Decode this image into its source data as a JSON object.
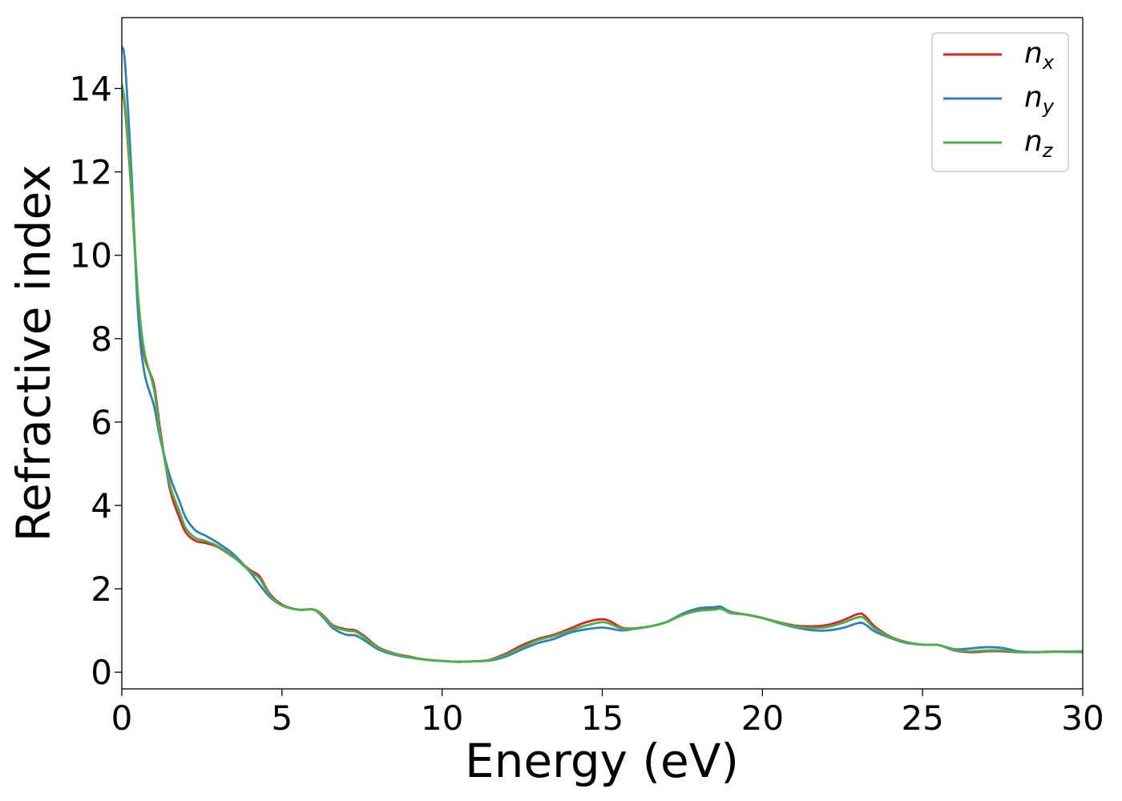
{
  "chart_data": {
    "type": "line",
    "title": "",
    "xlabel": "Energy (eV)",
    "ylabel": "Refractive index",
    "xlim": [
      0,
      30
    ],
    "ylim": [
      -0.4,
      15.7
    ],
    "xticks": [
      0,
      5,
      10,
      15,
      20,
      25,
      30
    ],
    "yticks": [
      0,
      2,
      4,
      6,
      8,
      10,
      12,
      14
    ],
    "grid": false,
    "legend_position": "top-right",
    "series": [
      {
        "name": "n_x",
        "name_main": "n",
        "name_sub": "x",
        "color": "#d62728",
        "points": [
          [
            0,
            14.0
          ],
          [
            0.1,
            13.5
          ],
          [
            0.3,
            11.5
          ],
          [
            0.5,
            9.0
          ],
          [
            0.7,
            7.6
          ],
          [
            1.0,
            6.9
          ],
          [
            1.2,
            5.8
          ],
          [
            1.5,
            4.4
          ],
          [
            1.8,
            3.7
          ],
          [
            2.0,
            3.35
          ],
          [
            2.3,
            3.15
          ],
          [
            2.6,
            3.1
          ],
          [
            3.0,
            3.0
          ],
          [
            3.5,
            2.75
          ],
          [
            4.0,
            2.45
          ],
          [
            4.3,
            2.3
          ],
          [
            4.6,
            1.9
          ],
          [
            5.0,
            1.62
          ],
          [
            5.5,
            1.5
          ],
          [
            6.0,
            1.5
          ],
          [
            6.3,
            1.35
          ],
          [
            6.6,
            1.12
          ],
          [
            7.0,
            1.03
          ],
          [
            7.3,
            1.0
          ],
          [
            7.6,
            0.85
          ],
          [
            8.0,
            0.6
          ],
          [
            8.5,
            0.45
          ],
          [
            9.0,
            0.37
          ],
          [
            9.5,
            0.3
          ],
          [
            10.0,
            0.27
          ],
          [
            10.5,
            0.25
          ],
          [
            11.0,
            0.26
          ],
          [
            11.5,
            0.3
          ],
          [
            12.0,
            0.45
          ],
          [
            12.5,
            0.65
          ],
          [
            13.0,
            0.8
          ],
          [
            13.5,
            0.9
          ],
          [
            14.0,
            1.05
          ],
          [
            14.5,
            1.2
          ],
          [
            15.0,
            1.27
          ],
          [
            15.3,
            1.2
          ],
          [
            15.6,
            1.07
          ],
          [
            16.0,
            1.05
          ],
          [
            16.5,
            1.1
          ],
          [
            17.0,
            1.2
          ],
          [
            17.5,
            1.38
          ],
          [
            18.0,
            1.48
          ],
          [
            18.5,
            1.52
          ],
          [
            18.7,
            1.54
          ],
          [
            19.0,
            1.42
          ],
          [
            19.5,
            1.38
          ],
          [
            20.0,
            1.3
          ],
          [
            20.5,
            1.2
          ],
          [
            21.0,
            1.12
          ],
          [
            21.5,
            1.1
          ],
          [
            22.0,
            1.13
          ],
          [
            22.5,
            1.24
          ],
          [
            23.0,
            1.4
          ],
          [
            23.2,
            1.35
          ],
          [
            23.5,
            1.1
          ],
          [
            24.0,
            0.85
          ],
          [
            24.5,
            0.72
          ],
          [
            25.0,
            0.66
          ],
          [
            25.5,
            0.65
          ],
          [
            26.0,
            0.52
          ],
          [
            26.5,
            0.48
          ],
          [
            27.0,
            0.5
          ],
          [
            27.5,
            0.5
          ],
          [
            28.0,
            0.48
          ],
          [
            28.5,
            0.48
          ],
          [
            29.0,
            0.49
          ],
          [
            29.5,
            0.49
          ],
          [
            30.0,
            0.49
          ]
        ]
      },
      {
        "name": "n_y",
        "name_main": "n",
        "name_sub": "y",
        "color": "#377eb8",
        "points": [
          [
            0,
            15.0
          ],
          [
            0.1,
            14.6
          ],
          [
            0.3,
            12.0
          ],
          [
            0.5,
            8.7
          ],
          [
            0.7,
            7.2
          ],
          [
            1.0,
            6.4
          ],
          [
            1.2,
            5.6
          ],
          [
            1.5,
            4.7
          ],
          [
            1.8,
            4.1
          ],
          [
            2.0,
            3.7
          ],
          [
            2.3,
            3.4
          ],
          [
            2.6,
            3.28
          ],
          [
            3.0,
            3.1
          ],
          [
            3.5,
            2.82
          ],
          [
            4.0,
            2.4
          ],
          [
            4.3,
            2.1
          ],
          [
            4.6,
            1.82
          ],
          [
            5.0,
            1.6
          ],
          [
            5.5,
            1.5
          ],
          [
            6.0,
            1.5
          ],
          [
            6.3,
            1.3
          ],
          [
            6.6,
            1.05
          ],
          [
            7.0,
            0.9
          ],
          [
            7.3,
            0.88
          ],
          [
            7.6,
            0.75
          ],
          [
            8.0,
            0.55
          ],
          [
            8.5,
            0.42
          ],
          [
            9.0,
            0.35
          ],
          [
            9.5,
            0.3
          ],
          [
            10.0,
            0.27
          ],
          [
            10.5,
            0.25
          ],
          [
            11.0,
            0.26
          ],
          [
            11.5,
            0.28
          ],
          [
            12.0,
            0.38
          ],
          [
            12.5,
            0.55
          ],
          [
            13.0,
            0.7
          ],
          [
            13.5,
            0.8
          ],
          [
            14.0,
            0.95
          ],
          [
            14.5,
            1.03
          ],
          [
            15.0,
            1.07
          ],
          [
            15.3,
            1.04
          ],
          [
            15.6,
            1.0
          ],
          [
            16.0,
            1.04
          ],
          [
            16.5,
            1.1
          ],
          [
            17.0,
            1.2
          ],
          [
            17.5,
            1.4
          ],
          [
            18.0,
            1.53
          ],
          [
            18.5,
            1.56
          ],
          [
            18.7,
            1.57
          ],
          [
            19.0,
            1.45
          ],
          [
            19.5,
            1.38
          ],
          [
            20.0,
            1.3
          ],
          [
            20.5,
            1.18
          ],
          [
            21.0,
            1.08
          ],
          [
            21.5,
            1.01
          ],
          [
            22.0,
            1.0
          ],
          [
            22.5,
            1.06
          ],
          [
            23.0,
            1.18
          ],
          [
            23.2,
            1.15
          ],
          [
            23.5,
            0.98
          ],
          [
            24.0,
            0.82
          ],
          [
            24.5,
            0.7
          ],
          [
            25.0,
            0.66
          ],
          [
            25.5,
            0.65
          ],
          [
            26.0,
            0.55
          ],
          [
            26.5,
            0.57
          ],
          [
            27.0,
            0.6
          ],
          [
            27.5,
            0.58
          ],
          [
            28.0,
            0.5
          ],
          [
            28.5,
            0.48
          ],
          [
            29.0,
            0.49
          ],
          [
            29.5,
            0.49
          ],
          [
            30.0,
            0.5
          ]
        ]
      },
      {
        "name": "n_z",
        "name_main": "n",
        "name_sub": "z",
        "color": "#4daf4a",
        "points": [
          [
            0,
            14.1
          ],
          [
            0.1,
            13.6
          ],
          [
            0.3,
            11.6
          ],
          [
            0.5,
            9.1
          ],
          [
            0.7,
            7.7
          ],
          [
            1.0,
            6.8
          ],
          [
            1.2,
            5.7
          ],
          [
            1.5,
            4.5
          ],
          [
            1.8,
            3.85
          ],
          [
            2.0,
            3.45
          ],
          [
            2.3,
            3.22
          ],
          [
            2.6,
            3.15
          ],
          [
            3.0,
            3.02
          ],
          [
            3.5,
            2.76
          ],
          [
            4.0,
            2.42
          ],
          [
            4.3,
            2.25
          ],
          [
            4.6,
            1.87
          ],
          [
            5.0,
            1.6
          ],
          [
            5.5,
            1.5
          ],
          [
            6.0,
            1.5
          ],
          [
            6.3,
            1.33
          ],
          [
            6.6,
            1.1
          ],
          [
            7.0,
            1.0
          ],
          [
            7.3,
            0.97
          ],
          [
            7.6,
            0.82
          ],
          [
            8.0,
            0.58
          ],
          [
            8.5,
            0.44
          ],
          [
            9.0,
            0.36
          ],
          [
            9.5,
            0.3
          ],
          [
            10.0,
            0.27
          ],
          [
            10.5,
            0.25
          ],
          [
            11.0,
            0.26
          ],
          [
            11.5,
            0.29
          ],
          [
            12.0,
            0.42
          ],
          [
            12.5,
            0.6
          ],
          [
            13.0,
            0.77
          ],
          [
            13.5,
            0.87
          ],
          [
            14.0,
            1.0
          ],
          [
            14.5,
            1.12
          ],
          [
            15.0,
            1.2
          ],
          [
            15.3,
            1.14
          ],
          [
            15.6,
            1.05
          ],
          [
            16.0,
            1.05
          ],
          [
            16.5,
            1.1
          ],
          [
            17.0,
            1.2
          ],
          [
            17.5,
            1.37
          ],
          [
            18.0,
            1.47
          ],
          [
            18.5,
            1.5
          ],
          [
            18.7,
            1.52
          ],
          [
            19.0,
            1.43
          ],
          [
            19.5,
            1.38
          ],
          [
            20.0,
            1.3
          ],
          [
            20.5,
            1.19
          ],
          [
            21.0,
            1.1
          ],
          [
            21.5,
            1.06
          ],
          [
            22.0,
            1.08
          ],
          [
            22.5,
            1.18
          ],
          [
            23.0,
            1.32
          ],
          [
            23.2,
            1.28
          ],
          [
            23.5,
            1.05
          ],
          [
            24.0,
            0.84
          ],
          [
            24.5,
            0.71
          ],
          [
            25.0,
            0.66
          ],
          [
            25.5,
            0.65
          ],
          [
            26.0,
            0.53
          ],
          [
            26.5,
            0.5
          ],
          [
            27.0,
            0.52
          ],
          [
            27.5,
            0.52
          ],
          [
            28.0,
            0.48
          ],
          [
            28.5,
            0.48
          ],
          [
            29.0,
            0.49
          ],
          [
            29.5,
            0.49
          ],
          [
            30.0,
            0.48
          ]
        ]
      }
    ]
  }
}
